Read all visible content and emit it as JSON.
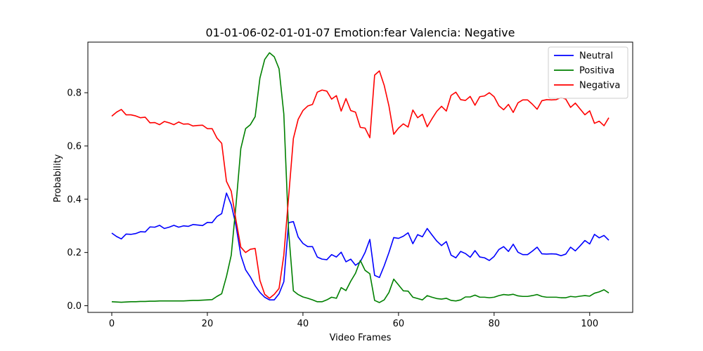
{
  "chart_data": {
    "type": "line",
    "title": "01-01-06-02-01-01-07 Emotion:fear Valencia: Negative",
    "xlabel": "Video Frames",
    "ylabel": "Probability",
    "xlim": [
      -5,
      109
    ],
    "ylim": [
      -0.025,
      0.99
    ],
    "xticks": [
      0,
      20,
      40,
      60,
      80,
      100
    ],
    "yticks": [
      0.0,
      0.2,
      0.4,
      0.6,
      0.8
    ],
    "ytick_labels": [
      "0.0",
      "0.2",
      "0.4",
      "0.6",
      "0.8"
    ],
    "grid": false,
    "legend_position": "top-right",
    "series": [
      {
        "name": "Neutral",
        "color": "#0000ff",
        "values": [
          0.273,
          0.26,
          0.251,
          0.269,
          0.268,
          0.271,
          0.278,
          0.277,
          0.296,
          0.295,
          0.302,
          0.29,
          0.295,
          0.302,
          0.295,
          0.3,
          0.298,
          0.305,
          0.303,
          0.301,
          0.313,
          0.312,
          0.335,
          0.346,
          0.423,
          0.38,
          0.3,
          0.19,
          0.135,
          0.108,
          0.075,
          0.05,
          0.032,
          0.022,
          0.022,
          0.045,
          0.09,
          0.312,
          0.316,
          0.258,
          0.234,
          0.222,
          0.222,
          0.183,
          0.175,
          0.173,
          0.192,
          0.183,
          0.201,
          0.165,
          0.175,
          0.152,
          0.165,
          0.2,
          0.249,
          0.114,
          0.106,
          0.15,
          0.2,
          0.256,
          0.253,
          0.261,
          0.274,
          0.233,
          0.267,
          0.259,
          0.29,
          0.266,
          0.243,
          0.226,
          0.241,
          0.19,
          0.18,
          0.204,
          0.196,
          0.182,
          0.207,
          0.183,
          0.18,
          0.17,
          0.185,
          0.211,
          0.222,
          0.204,
          0.231,
          0.201,
          0.192,
          0.192,
          0.205,
          0.22,
          0.195,
          0.194,
          0.195,
          0.194,
          0.188,
          0.194,
          0.22,
          0.206,
          0.225,
          0.245,
          0.232,
          0.268,
          0.255,
          0.264,
          0.246
        ]
      },
      {
        "name": "Positiva",
        "color": "#008000",
        "values": [
          0.015,
          0.014,
          0.013,
          0.014,
          0.015,
          0.015,
          0.016,
          0.016,
          0.017,
          0.017,
          0.018,
          0.018,
          0.018,
          0.018,
          0.018,
          0.018,
          0.019,
          0.02,
          0.02,
          0.021,
          0.022,
          0.023,
          0.035,
          0.045,
          0.11,
          0.19,
          0.38,
          0.59,
          0.665,
          0.68,
          0.71,
          0.855,
          0.925,
          0.95,
          0.935,
          0.89,
          0.72,
          0.28,
          0.056,
          0.042,
          0.033,
          0.028,
          0.022,
          0.015,
          0.015,
          0.022,
          0.032,
          0.028,
          0.068,
          0.057,
          0.092,
          0.122,
          0.17,
          0.133,
          0.12,
          0.02,
          0.012,
          0.022,
          0.05,
          0.1,
          0.078,
          0.056,
          0.055,
          0.032,
          0.027,
          0.022,
          0.038,
          0.032,
          0.027,
          0.025,
          0.028,
          0.02,
          0.018,
          0.022,
          0.033,
          0.033,
          0.04,
          0.032,
          0.032,
          0.03,
          0.032,
          0.038,
          0.042,
          0.04,
          0.043,
          0.037,
          0.035,
          0.035,
          0.038,
          0.042,
          0.035,
          0.032,
          0.032,
          0.032,
          0.03,
          0.03,
          0.035,
          0.033,
          0.036,
          0.038,
          0.036,
          0.047,
          0.052,
          0.06,
          0.048
        ]
      },
      {
        "name": "Negativa",
        "color": "#ff0000",
        "values": [
          0.712,
          0.727,
          0.737,
          0.717,
          0.717,
          0.713,
          0.706,
          0.708,
          0.687,
          0.688,
          0.68,
          0.692,
          0.687,
          0.68,
          0.69,
          0.682,
          0.683,
          0.675,
          0.677,
          0.678,
          0.665,
          0.665,
          0.63,
          0.61,
          0.467,
          0.43,
          0.32,
          0.22,
          0.2,
          0.212,
          0.215,
          0.095,
          0.043,
          0.028,
          0.043,
          0.065,
          0.19,
          0.408,
          0.628,
          0.7,
          0.733,
          0.75,
          0.756,
          0.802,
          0.81,
          0.806,
          0.776,
          0.789,
          0.731,
          0.778,
          0.733,
          0.727,
          0.67,
          0.667,
          0.631,
          0.866,
          0.882,
          0.828,
          0.75,
          0.644,
          0.667,
          0.683,
          0.671,
          0.735,
          0.706,
          0.719,
          0.672,
          0.702,
          0.73,
          0.749,
          0.731,
          0.79,
          0.802,
          0.774,
          0.771,
          0.786,
          0.753,
          0.785,
          0.788,
          0.8,
          0.785,
          0.751,
          0.736,
          0.756,
          0.726,
          0.762,
          0.773,
          0.773,
          0.757,
          0.738,
          0.77,
          0.774,
          0.773,
          0.774,
          0.782,
          0.776,
          0.745,
          0.761,
          0.739,
          0.717,
          0.732,
          0.685,
          0.693,
          0.676,
          0.706
        ]
      }
    ]
  }
}
